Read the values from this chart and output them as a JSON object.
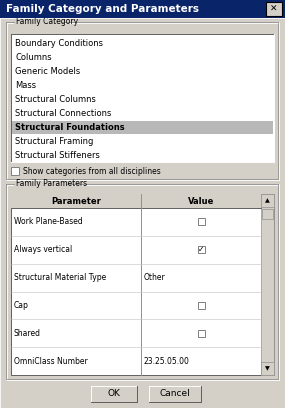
{
  "title": "Family Category and Parameters",
  "bg_color": "#d4d0c8",
  "title_bar_color": "#0a246a",
  "white": "#ffffff",
  "black": "#000000",
  "gray_dark": "#808080",
  "gray_mid": "#a0a0a0",
  "section1_label": "Family Category",
  "category_items": [
    "Boundary Conditions",
    "Columns",
    "Generic Models",
    "Mass",
    "Structural Columns",
    "Structural Connections",
    "Structural Foundations",
    "Structural Framing",
    "Structural Stiffeners"
  ],
  "selected_item": "Structural Foundations",
  "selected_color": "#b8b8b8",
  "checkbox_label": "Show categories from all disciplines",
  "section2_label": "Family Parameters",
  "table_headers": [
    "Parameter",
    "Value"
  ],
  "table_rows": [
    [
      "Work Plane-Based",
      "checkbox_empty"
    ],
    [
      "Always vertical",
      "checkbox_checked"
    ],
    [
      "Structural Material Type",
      "Other"
    ],
    [
      "Cap",
      "checkbox_empty"
    ],
    [
      "Shared",
      "checkbox_empty"
    ],
    [
      "OmniClass Number",
      "23.25.05.00"
    ]
  ],
  "btn_ok": "OK",
  "btn_cancel": "Cancel",
  "title_fontsize": 7.5,
  "item_fontsize": 6.0,
  "label_fontsize": 5.5,
  "header_fontsize": 6.0,
  "btn_fontsize": 6.5
}
